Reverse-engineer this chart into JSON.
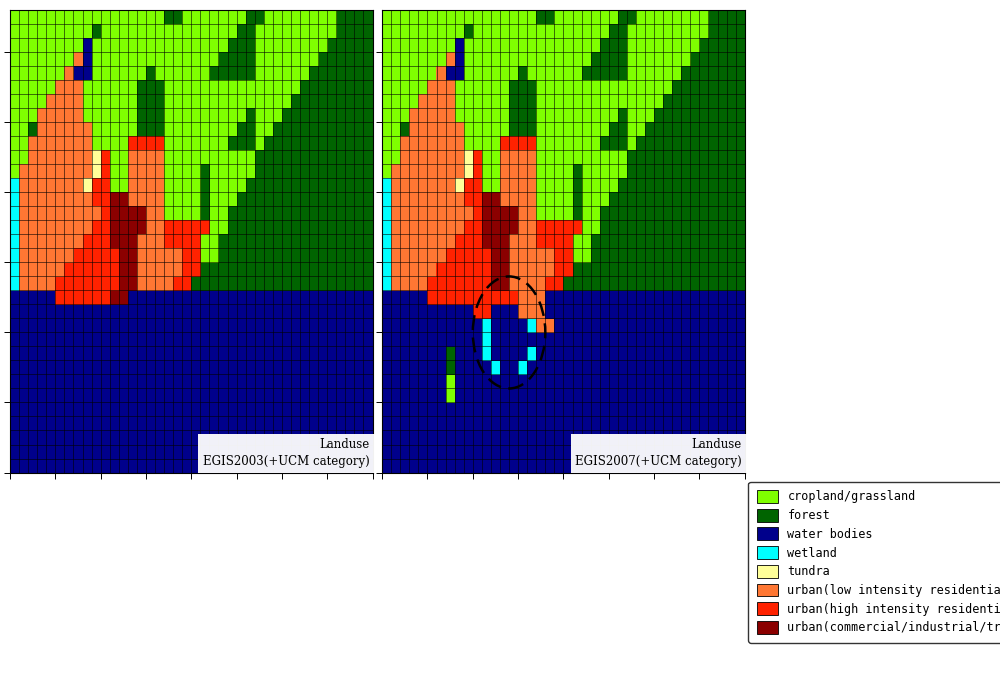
{
  "legend_labels": [
    "cropland/grassland",
    "forest",
    "water bodies",
    "wetland",
    "tundra",
    "urban(low intensity residential)",
    "urban(high intensity residential)",
    "urban(commercial/industrial/trans portation)"
  ],
  "legend_colors": [
    "#7FFF00",
    "#006400",
    "#00008B",
    "#00FFFF",
    "#FFFF99",
    "#FF7733",
    "#FF2200",
    "#8B0000"
  ],
  "label_2003": "Landuse\nEGIS2003(+UCM category)",
  "label_2007": "Landuse\nEGIS2007(+UCM category)",
  "nrows": 33,
  "ncols": 40
}
